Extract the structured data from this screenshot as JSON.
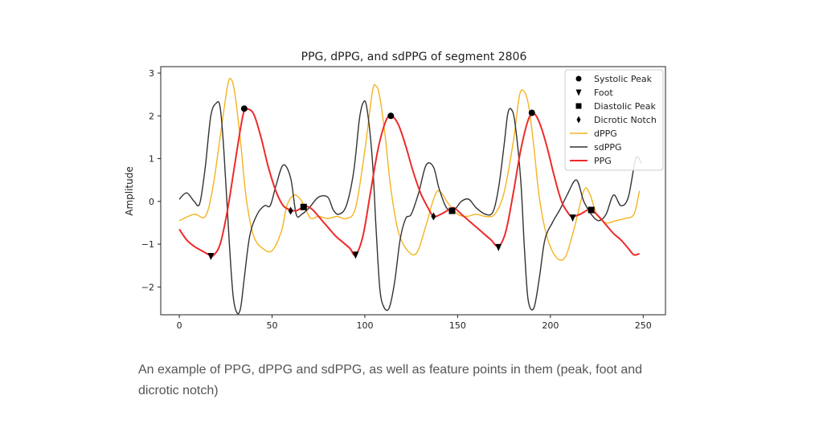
{
  "chart_data": {
    "type": "line",
    "title": "PPG, dPPG, and sdPPG of segment 2806",
    "xlabel": "",
    "ylabel": "Amplitude",
    "xlim": [
      -10,
      262
    ],
    "ylim": [
      -2.65,
      3.15
    ],
    "xticks": [
      0,
      50,
      100,
      150,
      200,
      250
    ],
    "yticks": [
      -2,
      -1,
      0,
      1,
      2,
      3
    ],
    "legend_position": "top-right",
    "series": [
      {
        "name": "dPPG",
        "color": "#f5b320",
        "x": [
          0,
          8,
          14,
          18,
          22,
          26,
          28,
          30,
          33,
          36,
          40,
          45,
          50,
          55,
          58,
          62,
          66,
          70,
          72,
          75,
          80,
          85,
          90,
          95,
          100,
          104,
          106,
          108,
          111,
          114,
          118,
          123,
          128,
          133,
          137,
          140,
          145,
          150,
          155,
          160,
          165,
          170,
          175,
          180,
          183,
          185,
          188,
          191,
          194,
          198,
          203,
          208,
          213,
          218,
          221,
          225,
          230,
          235,
          240,
          245,
          248
        ],
        "y": [
          -0.45,
          -0.3,
          -0.35,
          0.3,
          1.5,
          2.7,
          2.85,
          2.5,
          1.4,
          0.1,
          -0.8,
          -1.1,
          -1.15,
          -0.7,
          -0.1,
          0.15,
          0.0,
          -0.35,
          -0.4,
          -0.35,
          -0.4,
          -0.35,
          -0.4,
          -0.15,
          1.2,
          2.55,
          2.7,
          2.45,
          1.5,
          0.3,
          -0.7,
          -1.15,
          -1.2,
          -0.55,
          0.05,
          0.25,
          -0.05,
          -0.3,
          -0.35,
          -0.3,
          -0.35,
          -0.3,
          0.2,
          1.4,
          2.4,
          2.6,
          2.3,
          1.3,
          0.1,
          -0.8,
          -1.3,
          -1.3,
          -0.6,
          0.25,
          0.2,
          -0.3,
          -0.5,
          -0.45,
          -0.4,
          -0.3,
          0.25
        ]
      },
      {
        "name": "sdPPG",
        "color": "#333333",
        "x": [
          0,
          4,
          8,
          11,
          14,
          17,
          20,
          22,
          24,
          27,
          29,
          31,
          33,
          35,
          38,
          42,
          46,
          49,
          52,
          56,
          60,
          63,
          66,
          70,
          75,
          80,
          83,
          86,
          90,
          94,
          97,
          99,
          101,
          104,
          106,
          108,
          110,
          113,
          116,
          119,
          122,
          125,
          129,
          133,
          137,
          140,
          144,
          148,
          152,
          156,
          160,
          165,
          169,
          172,
          175,
          177,
          179,
          181,
          184,
          186,
          188,
          191,
          194,
          197,
          201,
          205,
          209,
          214,
          218,
          222,
          226,
          230,
          234,
          238,
          242,
          246,
          249
        ],
        "y": [
          0.05,
          0.2,
          0.0,
          -0.05,
          0.8,
          2.0,
          2.3,
          2.2,
          1.2,
          -1.0,
          -2.2,
          -2.6,
          -2.5,
          -1.8,
          -0.8,
          -0.3,
          -0.1,
          -0.1,
          0.35,
          0.85,
          0.55,
          -0.3,
          -0.3,
          -0.15,
          0.1,
          0.1,
          -0.2,
          -0.3,
          -0.1,
          0.7,
          1.9,
          2.3,
          2.2,
          1.0,
          -0.6,
          -2.0,
          -2.45,
          -2.5,
          -1.9,
          -0.9,
          -0.4,
          -0.3,
          0.2,
          0.85,
          0.8,
          0.3,
          -0.15,
          -0.2,
          0.0,
          0.05,
          -0.15,
          -0.3,
          -0.25,
          0.3,
          1.3,
          2.05,
          2.15,
          1.8,
          0.5,
          -1.1,
          -2.3,
          -2.5,
          -1.8,
          -0.9,
          -0.5,
          -0.2,
          0.15,
          0.5,
          0.0,
          -0.3,
          -0.45,
          -0.3,
          0.15,
          -0.1,
          0.1,
          1.0,
          0.9
        ]
      },
      {
        "name": "PPG",
        "color": "#ee2a2a",
        "x": [
          0,
          4,
          8,
          12,
          16,
          18,
          22,
          26,
          30,
          34,
          36,
          40,
          44,
          48,
          52,
          56,
          60,
          63,
          66,
          69,
          72,
          76,
          80,
          84,
          88,
          92,
          95,
          99,
          103,
          107,
          111,
          114,
          118,
          122,
          126,
          130,
          134,
          137,
          141,
          145,
          148,
          152,
          156,
          160,
          164,
          168,
          172,
          176,
          180,
          184,
          188,
          191,
          194,
          198,
          202,
          206,
          210,
          212,
          216,
          220,
          222,
          226,
          230,
          234,
          238,
          242,
          245,
          248
        ],
        "y": [
          -0.65,
          -0.9,
          -1.05,
          -1.15,
          -1.25,
          -1.28,
          -1.0,
          -0.2,
          0.9,
          1.95,
          2.15,
          2.05,
          1.5,
          0.8,
          0.25,
          -0.1,
          -0.2,
          -0.22,
          -0.15,
          -0.12,
          -0.2,
          -0.4,
          -0.6,
          -0.8,
          -0.95,
          -1.1,
          -1.25,
          -0.8,
          0.2,
          1.2,
          1.85,
          2.0,
          1.8,
          1.3,
          0.7,
          0.2,
          -0.15,
          -0.35,
          -0.3,
          -0.2,
          -0.15,
          -0.3,
          -0.45,
          -0.6,
          -0.75,
          -0.9,
          -1.05,
          -0.7,
          0.2,
          1.2,
          1.9,
          2.05,
          1.85,
          1.3,
          0.6,
          0.0,
          -0.3,
          -0.35,
          -0.3,
          -0.2,
          -0.2,
          -0.35,
          -0.55,
          -0.75,
          -0.9,
          -1.1,
          -1.25,
          -1.22
        ]
      }
    ],
    "markers": [
      {
        "name": "Systolic Peak",
        "shape": "circle",
        "points": [
          [
            35,
            2.17
          ],
          [
            114,
            2.0
          ],
          [
            190,
            2.07
          ]
        ]
      },
      {
        "name": "Foot",
        "shape": "triangle-down",
        "points": [
          [
            17,
            -1.28
          ],
          [
            95,
            -1.25
          ],
          [
            172,
            -1.07
          ],
          [
            212,
            -0.38
          ]
        ]
      },
      {
        "name": "Diastolic Peak",
        "shape": "square",
        "points": [
          [
            67,
            -0.13
          ],
          [
            147,
            -0.22
          ],
          [
            222,
            -0.2
          ]
        ]
      },
      {
        "name": "Dicrotic Notch",
        "shape": "diamond",
        "points": [
          [
            60,
            -0.22
          ],
          [
            137,
            -0.35
          ]
        ]
      }
    ],
    "legend": [
      "Systolic Peak",
      "Foot",
      "Diastolic Peak",
      "Dicrotic Notch",
      "dPPG",
      "sdPPG",
      "PPG"
    ]
  },
  "caption": "An example of PPG, dPPG and sdPPG, as well as feature points in them (peak, foot and dicrotic notch)"
}
